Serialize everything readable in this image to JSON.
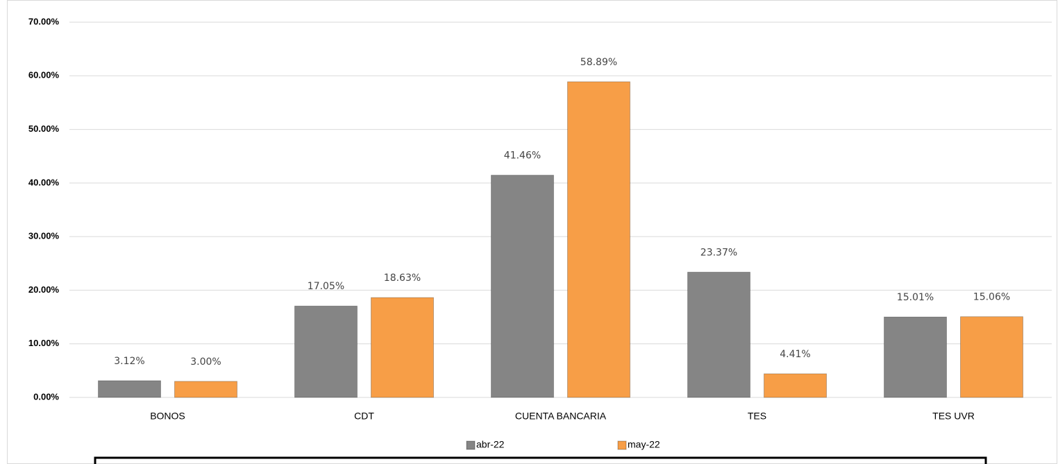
{
  "chart_data": {
    "type": "bar",
    "categories": [
      "BONOS",
      "CDT",
      "CUENTA BANCARIA",
      "TES",
      "TES UVR"
    ],
    "series": [
      {
        "name": "abr-22",
        "color": "#858585",
        "values": [
          3.12,
          17.05,
          41.46,
          23.37,
          15.01
        ],
        "value_labels": [
          "3.12%",
          "17.05%",
          "41.46%",
          "23.37%",
          "15.01%"
        ]
      },
      {
        "name": "may-22",
        "color": "#f79e47",
        "values": [
          3.0,
          18.63,
          58.89,
          4.41,
          15.06
        ],
        "value_labels": [
          "3.00%",
          "18.63%",
          "58.89%",
          "4.41%",
          "15.06%"
        ]
      }
    ],
    "ylim": [
      0,
      70
    ],
    "yticks": [
      {
        "value": 0,
        "label": "0.00%"
      },
      {
        "value": 10,
        "label": "10.00%"
      },
      {
        "value": 20,
        "label": "20.00%"
      },
      {
        "value": 30,
        "label": "30.00%"
      },
      {
        "value": 40,
        "label": "40.00%"
      },
      {
        "value": 50,
        "label": "50.00%"
      },
      {
        "value": 60,
        "label": "60.00%"
      },
      {
        "value": 70,
        "label": "70.00%"
      }
    ],
    "grid": true,
    "legend": "bottom"
  }
}
